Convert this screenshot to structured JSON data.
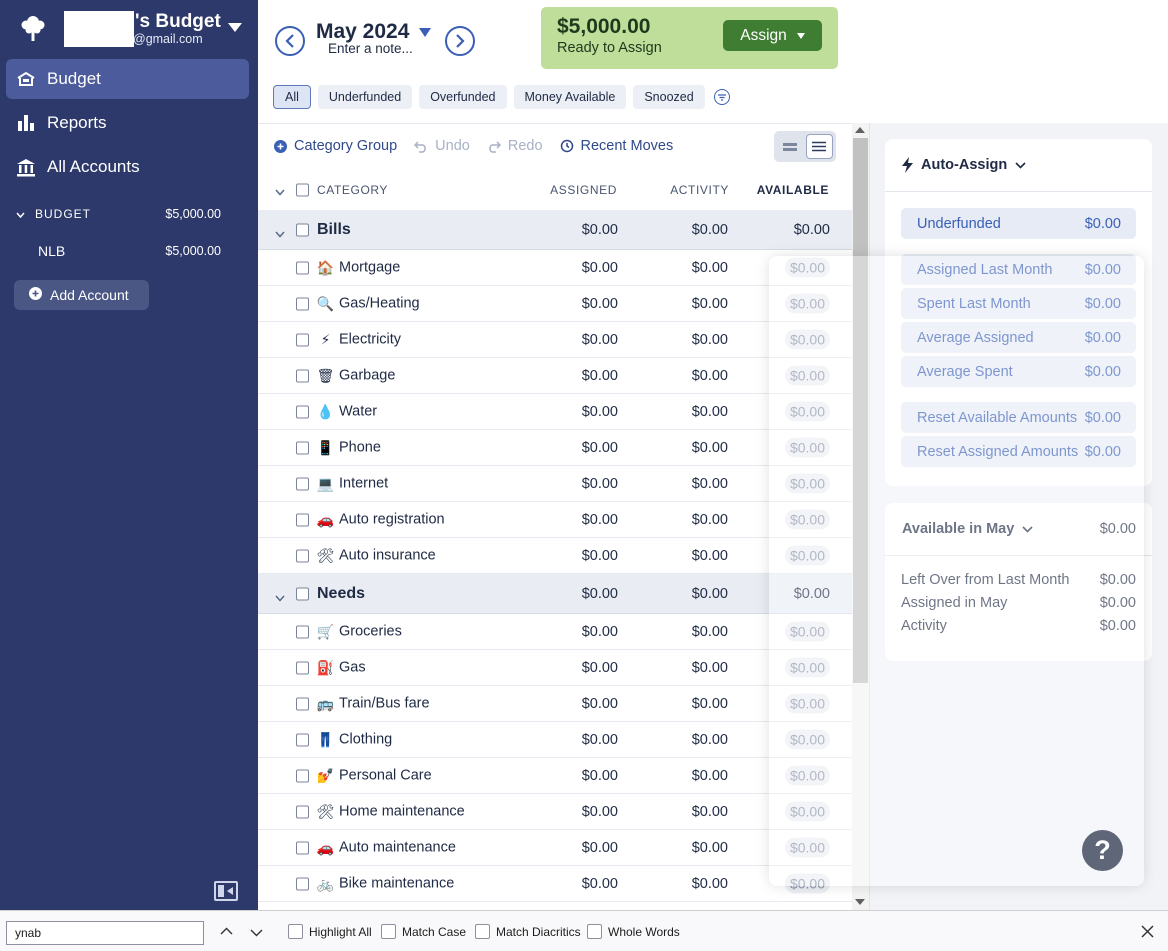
{
  "sidebar": {
    "budget_title_suffix": "'s Budget",
    "email_suffix": "@gmail.com",
    "nav": [
      {
        "label": "Budget",
        "icon": "budget-icon",
        "active": true
      },
      {
        "label": "Reports",
        "icon": "reports-icon"
      },
      {
        "label": "All Accounts",
        "icon": "bank-icon"
      }
    ],
    "section": {
      "label": "BUDGET",
      "amount": "$5,000.00"
    },
    "account": {
      "name": "NLB",
      "amount": "$5,000.00"
    },
    "add_account_label": "Add Account"
  },
  "header": {
    "month": "May 2024",
    "note_placeholder": "Enter a note...",
    "ready_amount": "$5,000.00",
    "ready_label": "Ready to Assign",
    "assign_label": "Assign",
    "filters": [
      "All",
      "Underfunded",
      "Overfunded",
      "Money Available",
      "Snoozed"
    ]
  },
  "toolbar": {
    "category_group": "Category Group",
    "undo": "Undo",
    "redo": "Redo",
    "recent_moves": "Recent Moves"
  },
  "columns": {
    "category": "CATEGORY",
    "assigned": "ASSIGNED",
    "activity": "ACTIVITY",
    "available": "AVAILABLE"
  },
  "groups": [
    {
      "name": "Bills",
      "assigned": "$0.00",
      "activity": "$0.00",
      "available": "$0.00",
      "rows": [
        {
          "emoji": "🏠",
          "name": "Mortgage",
          "assigned": "$0.00",
          "activity": "$0.00",
          "available": "$0.00"
        },
        {
          "emoji": "🔍",
          "name": "Gas/Heating",
          "assigned": "$0.00",
          "activity": "$0.00",
          "available": "$0.00"
        },
        {
          "emoji": "⚡",
          "name": "Electricity",
          "assigned": "$0.00",
          "activity": "$0.00",
          "available": "$0.00"
        },
        {
          "emoji": "🗑",
          "name": "Garbage",
          "assigned": "$0.00",
          "activity": "$0.00",
          "available": "$0.00"
        },
        {
          "emoji": "💧",
          "name": "Water",
          "assigned": "$0.00",
          "activity": "$0.00",
          "available": "$0.00"
        },
        {
          "emoji": "📱",
          "name": "Phone",
          "assigned": "$0.00",
          "activity": "$0.00",
          "available": "$0.00"
        },
        {
          "emoji": "💻",
          "name": "Internet",
          "assigned": "$0.00",
          "activity": "$0.00",
          "available": "$0.00"
        },
        {
          "emoji": "🚗",
          "name": "Auto registration",
          "assigned": "$0.00",
          "activity": "$0.00",
          "available": "$0.00"
        },
        {
          "emoji": "🛠",
          "name": "Auto insurance",
          "assigned": "$0.00",
          "activity": "$0.00",
          "available": "$0.00"
        }
      ]
    },
    {
      "name": "Needs",
      "assigned": "$0.00",
      "activity": "$0.00",
      "available": "$0.00",
      "rows": [
        {
          "emoji": "🛒",
          "name": "Groceries",
          "assigned": "$0.00",
          "activity": "$0.00",
          "available": "$0.00"
        },
        {
          "emoji": "⛽",
          "name": "Gas",
          "assigned": "$0.00",
          "activity": "$0.00",
          "available": "$0.00"
        },
        {
          "emoji": "🚌",
          "name": "Train/Bus fare",
          "assigned": "$0.00",
          "activity": "$0.00",
          "available": "$0.00"
        },
        {
          "emoji": "👖",
          "name": "Clothing",
          "assigned": "$0.00",
          "activity": "$0.00",
          "available": "$0.00"
        },
        {
          "emoji": "💅",
          "name": "Personal Care",
          "assigned": "$0.00",
          "activity": "$0.00",
          "available": "$0.00"
        },
        {
          "emoji": "🛠",
          "name": "Home maintenance",
          "assigned": "$0.00",
          "activity": "$0.00",
          "available": "$0.00"
        },
        {
          "emoji": "🚗",
          "name": "Auto maintenance",
          "assigned": "$0.00",
          "activity": "$0.00",
          "available": "$0.00"
        },
        {
          "emoji": "🚲",
          "name": "Bike maintenance",
          "assigned": "$0.00",
          "activity": "$0.00",
          "available": "$0.00"
        }
      ]
    }
  ],
  "auto_assign": {
    "title": "Auto-Assign",
    "items": [
      {
        "label": "Underfunded",
        "amount": "$0.00"
      },
      {
        "label": "Assigned Last Month",
        "amount": "$0.00"
      },
      {
        "label": "Spent Last Month",
        "amount": "$0.00"
      },
      {
        "label": "Average Assigned",
        "amount": "$0.00"
      },
      {
        "label": "Average Spent",
        "amount": "$0.00"
      },
      {
        "label": "Reset Available Amounts",
        "amount": "$0.00"
      },
      {
        "label": "Reset Assigned Amounts",
        "amount": "$0.00"
      }
    ]
  },
  "available_card": {
    "title": "Available in May",
    "amount": "$0.00",
    "rows": [
      {
        "label": "Left Over from Last Month",
        "amount": "$0.00"
      },
      {
        "label": "Assigned in May",
        "amount": "$0.00"
      },
      {
        "label": "Activity",
        "amount": "$0.00"
      }
    ]
  },
  "findbar": {
    "query": "ynab",
    "options": [
      "Highlight All",
      "Match Case",
      "Match Diacritics",
      "Whole Words"
    ]
  },
  "colors": {
    "sidebar": "#2c396a",
    "ready_bg": "#bfde9a",
    "assign_btn": "#3e7d32",
    "accent": "#3a5fb5"
  }
}
